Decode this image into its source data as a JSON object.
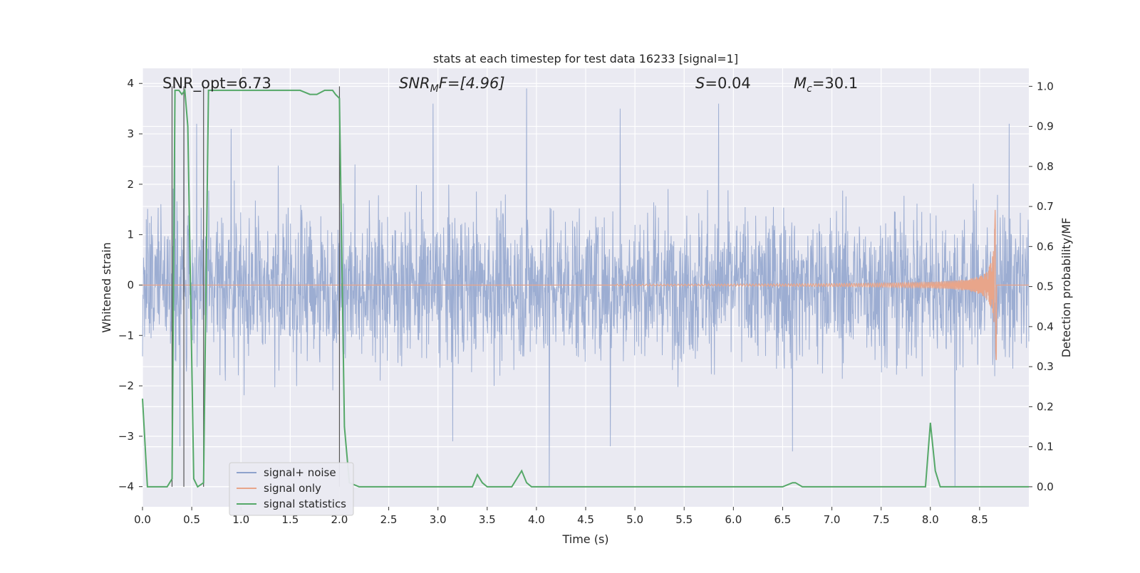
{
  "chart_data": {
    "type": "line",
    "title": "stats at each timestep for test data 16233 [signal=1]",
    "xlabel": "Time (s)",
    "ylabel": "Whitened strain",
    "y2label": "Detection probability/MF",
    "xlim": [
      0,
      9.0
    ],
    "ylim": [
      -4.4,
      4.3
    ],
    "y2lim": [
      -0.05,
      1.045
    ],
    "xticks": [
      "0.0",
      "0.5",
      "1.0",
      "1.5",
      "2.0",
      "2.5",
      "3.0",
      "3.5",
      "4.0",
      "4.5",
      "5.0",
      "5.5",
      "6.0",
      "6.5",
      "7.0",
      "7.5",
      "8.0",
      "8.5"
    ],
    "yticks": [
      "4",
      "3",
      "2",
      "1",
      "0",
      "−1",
      "−2",
      "−3",
      "−4"
    ],
    "y2ticks": [
      "1.0",
      "0.9",
      "0.8",
      "0.7",
      "0.6",
      "0.5",
      "0.4",
      "0.3",
      "0.2",
      "0.1",
      "0.0"
    ],
    "grid": true,
    "legend_position": "lower-left",
    "annotations": {
      "snr_opt": "SNR_opt=6.73",
      "snr_mf_main": "SNR",
      "snr_mf_sub": "M",
      "snr_mf_rest": "F=[4.96]",
      "s_main": "S",
      "s_rest": "=0.04",
      "mc_main": "M",
      "mc_sub": "c",
      "mc_rest": "=30.1"
    },
    "series": [
      {
        "name": "signal+ noise",
        "axis": "left",
        "color": "#8ea2cc",
        "description": "whitened noisy strain, dense band roughly between -2 and 2 with spikes up to about 3.9 and down to about -4.0",
        "peaks": [
          {
            "x": 0.33,
            "y": 3.3
          },
          {
            "x": 0.42,
            "y": 3.5
          },
          {
            "x": 0.55,
            "y": 3.2
          },
          {
            "x": 0.9,
            "y": 3.1
          },
          {
            "x": 2.95,
            "y": 3.6
          },
          {
            "x": 3.9,
            "y": 3.9
          },
          {
            "x": 4.85,
            "y": 3.5
          },
          {
            "x": 5.85,
            "y": 3.6
          },
          {
            "x": 8.8,
            "y": 3.2
          }
        ],
        "troughs": [
          {
            "x": 0.38,
            "y": -3.2
          },
          {
            "x": 3.15,
            "y": -3.1
          },
          {
            "x": 4.13,
            "y": -4.0
          },
          {
            "x": 4.75,
            "y": -3.2
          },
          {
            "x": 6.6,
            "y": -3.3
          },
          {
            "x": 8.25,
            "y": -4.0
          }
        ]
      },
      {
        "name": "signal only",
        "axis": "left",
        "color": "#e8a58a",
        "description": "chirp signal, near zero amplitude rising to about ±1.5 at merger near t=8.65 s",
        "chirp_start": 4.8,
        "chirp_end": 8.67,
        "peak_amplitude": 1.5
      },
      {
        "name": "signal statistics",
        "axis": "right",
        "color": "#55a868",
        "x": [
          0.0,
          0.05,
          0.1,
          0.25,
          0.3,
          0.33,
          0.37,
          0.4,
          0.43,
          0.46,
          0.52,
          0.56,
          0.62,
          0.67,
          0.8,
          1.0,
          1.3,
          1.6,
          1.7,
          1.77,
          1.85,
          1.93,
          1.96,
          2.0,
          2.05,
          2.1,
          2.2,
          2.3,
          2.6,
          2.8,
          3.2,
          3.35,
          3.4,
          3.45,
          3.5,
          3.6,
          3.75,
          3.85,
          3.9,
          3.95,
          4.0,
          6.5,
          6.6,
          6.63,
          6.7,
          7.95,
          8.0,
          8.05,
          8.1,
          8.2,
          9.0
        ],
        "y": [
          0.22,
          0.0,
          0.0,
          0.0,
          0.02,
          0.99,
          0.99,
          0.98,
          0.99,
          0.9,
          0.02,
          0.0,
          0.01,
          0.99,
          0.99,
          0.99,
          0.99,
          0.99,
          0.98,
          0.98,
          0.99,
          0.99,
          0.98,
          0.97,
          0.15,
          0.01,
          0.0,
          0.0,
          0.0,
          0.0,
          0.0,
          0.0,
          0.03,
          0.01,
          0.0,
          0.0,
          0.0,
          0.04,
          0.01,
          0.0,
          0.0,
          0.0,
          0.01,
          0.01,
          0.0,
          0.0,
          0.16,
          0.04,
          0.0,
          0.0,
          0.0
        ]
      }
    ],
    "vertical_markers": [
      0.3,
      0.42,
      0.62,
      2.0
    ]
  }
}
